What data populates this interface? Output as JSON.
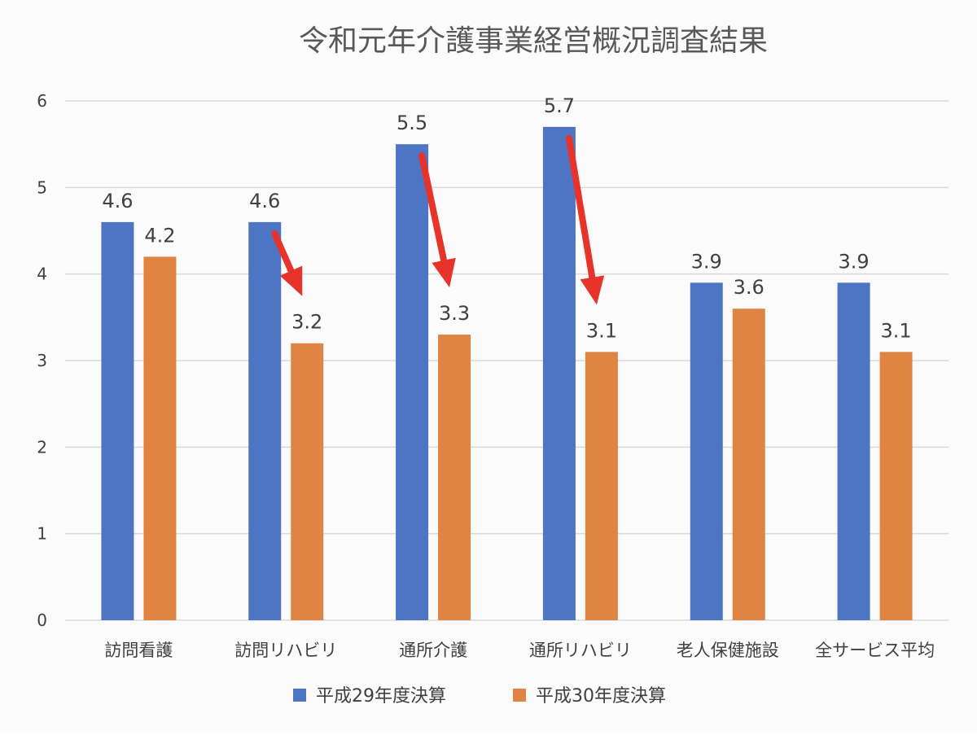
{
  "chart_data": {
    "type": "bar",
    "title": "令和元年介護事業経営概況調査結果",
    "categories": [
      "訪問看護",
      "訪問リハビリ",
      "通所介護",
      "通所リハビリ",
      "老人保健施設",
      "全サービス平均"
    ],
    "series": [
      {
        "name": "平成29年度決算",
        "values": [
          4.6,
          4.6,
          5.5,
          5.7,
          3.9,
          3.9
        ]
      },
      {
        "name": "平成30年度決算",
        "values": [
          4.2,
          3.2,
          3.3,
          3.1,
          3.6,
          3.1
        ]
      }
    ],
    "ylim": [
      0,
      6
    ],
    "yticks": [
      "0",
      "1",
      "2",
      "3",
      "4",
      "5",
      "6"
    ],
    "grid": true,
    "legend_placement": "bottom",
    "annotations": "red arrows from 平成29年度決算 to 平成30年度決算 for 訪問リハビリ, 通所介護, 通所リハビリ",
    "arrow_categories": [
      1,
      2,
      3
    ]
  },
  "colors": {
    "series0": "#4e74c4",
    "series1": "#e08444",
    "arrow": "#e8332a",
    "grid": "#d9d9d9",
    "text": "#404040",
    "title": "#595959"
  }
}
